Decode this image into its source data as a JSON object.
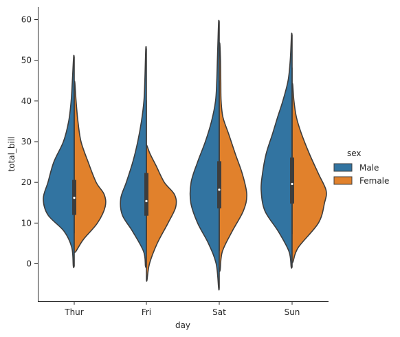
{
  "chart_data": {
    "type": "violin",
    "categories": [
      "Thur",
      "Fri",
      "Sat",
      "Sun"
    ],
    "xlabel": "day",
    "ylabel": "total_bill",
    "ylim": [
      -9,
      63
    ],
    "yticks": [
      0,
      10,
      20,
      30,
      40,
      50,
      60
    ],
    "grid": false,
    "legend": {
      "title": "sex",
      "placement": "right"
    },
    "series": [
      {
        "name": "Male",
        "color": "#3274a1",
        "violins": [
          {
            "category": "Thur",
            "ymin": -0.6,
            "ymax": 50.8,
            "profile": [
              [
                -0.6,
                0.03
              ],
              [
                4,
                0.08
              ],
              [
                8,
                0.33
              ],
              [
                12,
                0.85
              ],
              [
                16,
                1.0
              ],
              [
                20,
                0.85
              ],
              [
                25,
                0.66
              ],
              [
                30,
                0.35
              ],
              [
                35,
                0.18
              ],
              [
                40,
                0.1
              ],
              [
                45,
                0.06
              ],
              [
                50.8,
                0.02
              ]
            ]
          },
          {
            "category": "Fri",
            "ymin": -0.6,
            "ymax": 52.8,
            "profile": [
              [
                -0.6,
                0.03
              ],
              [
                3,
                0.09
              ],
              [
                8,
                0.45
              ],
              [
                12,
                0.78
              ],
              [
                16,
                0.83
              ],
              [
                20,
                0.65
              ],
              [
                25,
                0.44
              ],
              [
                30,
                0.28
              ],
              [
                35,
                0.16
              ],
              [
                40,
                0.08
              ],
              [
                45,
                0.05
              ],
              [
                52.8,
                0.02
              ]
            ]
          },
          {
            "category": "Sat",
            "ymin": -6.0,
            "ymax": 59.5,
            "profile": [
              [
                -6,
                0.02
              ],
              [
                0,
                0.1
              ],
              [
                5,
                0.35
              ],
              [
                10,
                0.7
              ],
              [
                15,
                0.92
              ],
              [
                20,
                0.91
              ],
              [
                25,
                0.7
              ],
              [
                30,
                0.45
              ],
              [
                35,
                0.25
              ],
              [
                40,
                0.12
              ],
              [
                45,
                0.08
              ],
              [
                50,
                0.06
              ],
              [
                55,
                0.04
              ],
              [
                59.5,
                0.02
              ]
            ]
          },
          {
            "category": "Sun",
            "ymin": -0.8,
            "ymax": 56.2,
            "profile": [
              [
                -0.8,
                0.03
              ],
              [
                3,
                0.1
              ],
              [
                8,
                0.45
              ],
              [
                13,
                0.88
              ],
              [
                18,
                1.0
              ],
              [
                22,
                0.96
              ],
              [
                27,
                0.84
              ],
              [
                32,
                0.63
              ],
              [
                36,
                0.47
              ],
              [
                40,
                0.3
              ],
              [
                45,
                0.13
              ],
              [
                50,
                0.06
              ],
              [
                56.2,
                0.02
              ]
            ]
          }
        ]
      },
      {
        "name": "Female",
        "color": "#e1812c",
        "violins": [
          {
            "category": "Thur",
            "ymin": 3.0,
            "ymax": 44.5,
            "profile": [
              [
                3,
                0.05
              ],
              [
                6,
                0.3
              ],
              [
                10,
                0.75
              ],
              [
                14,
                1.0
              ],
              [
                17,
                0.97
              ],
              [
                20,
                0.71
              ],
              [
                25,
                0.45
              ],
              [
                30,
                0.22
              ],
              [
                35,
                0.12
              ],
              [
                40,
                0.06
              ],
              [
                44.5,
                0.02
              ]
            ]
          },
          {
            "category": "Fri",
            "ymin": -4.0,
            "ymax": 29.0,
            "profile": [
              [
                -4,
                0.02
              ],
              [
                0,
                0.1
              ],
              [
                5,
                0.35
              ],
              [
                10,
                0.7
              ],
              [
                14,
                0.95
              ],
              [
                17,
                0.91
              ],
              [
                20,
                0.58
              ],
              [
                24,
                0.32
              ],
              [
                27,
                0.12
              ],
              [
                29,
                0.02
              ]
            ]
          },
          {
            "category": "Sat",
            "ymin": -1.5,
            "ymax": 54.0,
            "profile": [
              [
                -1.5,
                0.03
              ],
              [
                3,
                0.1
              ],
              [
                8,
                0.42
              ],
              [
                13,
                0.78
              ],
              [
                17,
                0.89
              ],
              [
                22,
                0.75
              ],
              [
                27,
                0.52
              ],
              [
                32,
                0.3
              ],
              [
                36,
                0.12
              ],
              [
                40,
                0.06
              ],
              [
                45,
                0.05
              ],
              [
                50,
                0.04
              ],
              [
                54,
                0.02
              ]
            ]
          },
          {
            "category": "Sun",
            "ymin": 0.5,
            "ymax": 44.0,
            "profile": [
              [
                0.5,
                0.03
              ],
              [
                4,
                0.2
              ],
              [
                10,
                0.85
              ],
              [
                15,
                1.05
              ],
              [
                18,
                1.1
              ],
              [
                22,
                0.86
              ],
              [
                27,
                0.56
              ],
              [
                32,
                0.3
              ],
              [
                36,
                0.14
              ],
              [
                40,
                0.06
              ],
              [
                44,
                0.02
              ]
            ]
          }
        ]
      }
    ],
    "box": [
      {
        "category": "Thur",
        "q1": 12.0,
        "median": 16.2,
        "q3": 20.6,
        "whisker_low": 7.5,
        "whisker_high": 43.0
      },
      {
        "category": "Fri",
        "q1": 11.8,
        "median": 15.4,
        "q3": 22.3,
        "whisker_low": 5.8,
        "whisker_high": 40.2
      },
      {
        "category": "Sat",
        "q1": 13.6,
        "median": 18.2,
        "q3": 25.2,
        "whisker_low": 3.1,
        "whisker_high": 45.0
      },
      {
        "category": "Sun",
        "q1": 14.8,
        "median": 19.6,
        "q3": 26.1,
        "whisker_low": 7.3,
        "whisker_high": 48.2
      }
    ]
  }
}
